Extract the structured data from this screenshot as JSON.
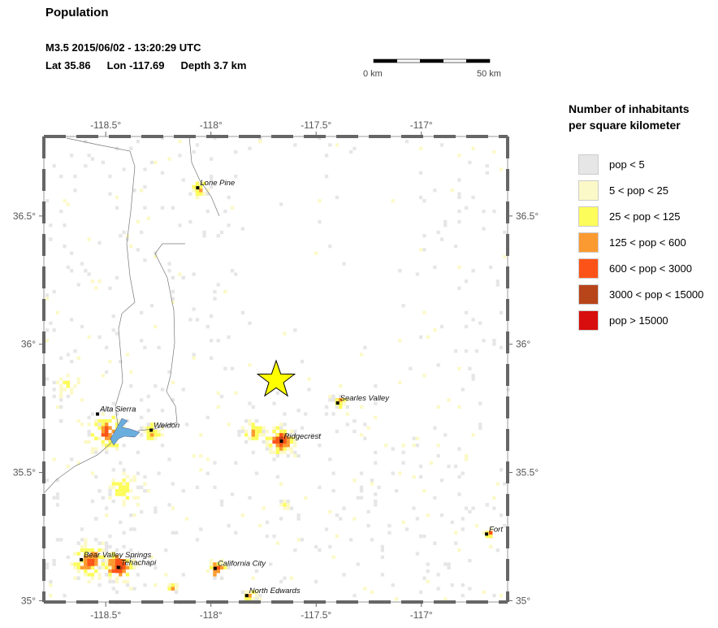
{
  "header": {
    "title": "Population",
    "event_line": "M3.5  2015/06/02 - 13:20:29 UTC",
    "lat": "Lat 35.86",
    "lon": "Lon -117.69",
    "depth": "Depth  3.7 km"
  },
  "scalebar": {
    "start_label": "0 km",
    "end_label": "50 km"
  },
  "map": {
    "lon_range": [
      -118.794,
      -116.59
    ],
    "lat_range": [
      34.995,
      36.81
    ],
    "lon_ticks": [
      {
        "value": -118.5,
        "label": "-118.5°"
      },
      {
        "value": -118,
        "label": "-118°"
      },
      {
        "value": -117.5,
        "label": "-117.5°"
      },
      {
        "value": -117,
        "label": "-117°"
      }
    ],
    "lat_ticks": [
      {
        "value": 36.5,
        "label": "36.5°"
      },
      {
        "value": 36,
        "label": "36°"
      },
      {
        "value": 35.5,
        "label": "35.5°"
      },
      {
        "value": 35,
        "label": "35°"
      }
    ],
    "epicenter": {
      "lon": -117.69,
      "lat": 35.86,
      "color": "#ffff00",
      "icon": "star-icon"
    },
    "lake_color": "#6aaede",
    "cities": [
      {
        "name": "Lone Pine",
        "lon": -118.063,
        "lat": 36.61
      },
      {
        "name": "Alta Sierra",
        "lon": -118.539,
        "lat": 35.728
      },
      {
        "name": "Weldon",
        "lon": -118.284,
        "lat": 35.665
      },
      {
        "name": "Ridgecrest",
        "lon": -117.665,
        "lat": 35.622
      },
      {
        "name": "Searles Valley",
        "lon": -117.398,
        "lat": 35.771
      },
      {
        "name": "Bear Valley Springs",
        "lon": -118.616,
        "lat": 35.16
      },
      {
        "name": "Tehachapi",
        "lon": -118.44,
        "lat": 35.13
      },
      {
        "name": "California City",
        "lon": -117.98,
        "lat": 35.126
      },
      {
        "name": "North Edwards",
        "lon": -117.83,
        "lat": 35.02
      },
      {
        "name": "Fort",
        "lon": -116.69,
        "lat": 35.26
      }
    ]
  },
  "legend": {
    "title_line1": "Number of inhabitants",
    "title_line2": "per square kilometer",
    "items": [
      {
        "label": "pop < 5",
        "color": "#e6e6e6"
      },
      {
        "label": "5 < pop < 25",
        "color": "#fcf9c8"
      },
      {
        "label": "25 < pop < 125",
        "color": "#fcfc5a"
      },
      {
        "label": "125 < pop < 600",
        "color": "#fb9a30"
      },
      {
        "label": "600 < pop < 3000",
        "color": "#fc5418"
      },
      {
        "label": "3000 < pop < 15000",
        "color": "#b8441a"
      },
      {
        "label": "pop > 15000",
        "color": "#d80d0d"
      }
    ]
  }
}
